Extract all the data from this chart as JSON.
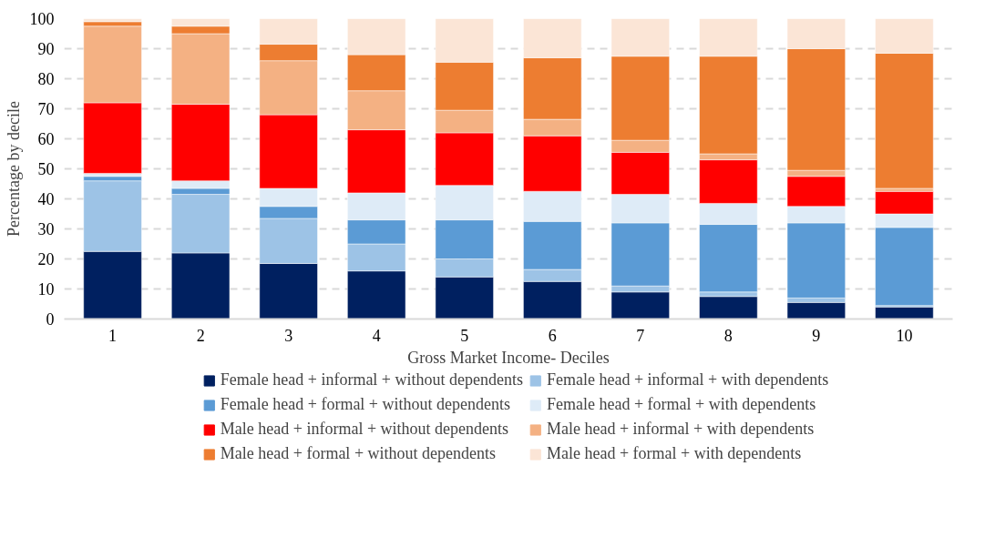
{
  "chart_data": {
    "type": "bar",
    "stacked": true,
    "xlabel": "Gross Market Income- Deciles",
    "ylabel": "Percentage by decile",
    "categories": [
      "1",
      "2",
      "3",
      "4",
      "5",
      "6",
      "7",
      "8",
      "9",
      "10"
    ],
    "ylim": [
      0,
      100
    ],
    "yticks": [
      0,
      10,
      20,
      30,
      40,
      50,
      60,
      70,
      80,
      90,
      100
    ],
    "grid": "y",
    "legend": "bottom",
    "series": [
      {
        "name": "Female head + informal + without dependents",
        "color": "#002060",
        "values": [
          22.5,
          22,
          18.5,
          16,
          14,
          12.5,
          9,
          7.5,
          5.5,
          4
        ]
      },
      {
        "name": "Female head + informal + with dependents",
        "color": "#9dc3e6",
        "values": [
          23.5,
          19.5,
          15,
          9,
          6,
          4,
          2,
          1.5,
          1.5,
          0.5
        ]
      },
      {
        "name": "Female head + formal + without dependents",
        "color": "#5b9bd5",
        "values": [
          1.5,
          2,
          4,
          8,
          13,
          16,
          21,
          22.5,
          25,
          26
        ]
      },
      {
        "name": "Female head + formal + with dependents",
        "color": "#deebf7",
        "values": [
          1,
          2.5,
          6,
          9,
          11.5,
          10,
          9.5,
          7,
          5.5,
          4.5
        ]
      },
      {
        "name": "Male head + informal + without dependents",
        "color": "#ff0000",
        "values": [
          23.5,
          25.5,
          24.5,
          21,
          17.5,
          18.5,
          14,
          14.5,
          10,
          7.5
        ]
      },
      {
        "name": "Male head + informal + with dependents",
        "color": "#f4b183",
        "values": [
          25.5,
          23.5,
          18,
          13,
          7.5,
          5.5,
          4,
          2,
          2,
          1
        ]
      },
      {
        "name": "Male head + formal + without dependents",
        "color": "#ed7d31",
        "values": [
          1.5,
          2.5,
          5.5,
          12,
          16,
          20.5,
          28,
          32.5,
          40.5,
          45
        ]
      },
      {
        "name": "Male head + formal + with dependents",
        "color": "#fbe5d6",
        "values": [
          1,
          2.5,
          8.5,
          12,
          14.5,
          13,
          12.5,
          12.5,
          10,
          11.5
        ]
      }
    ]
  }
}
